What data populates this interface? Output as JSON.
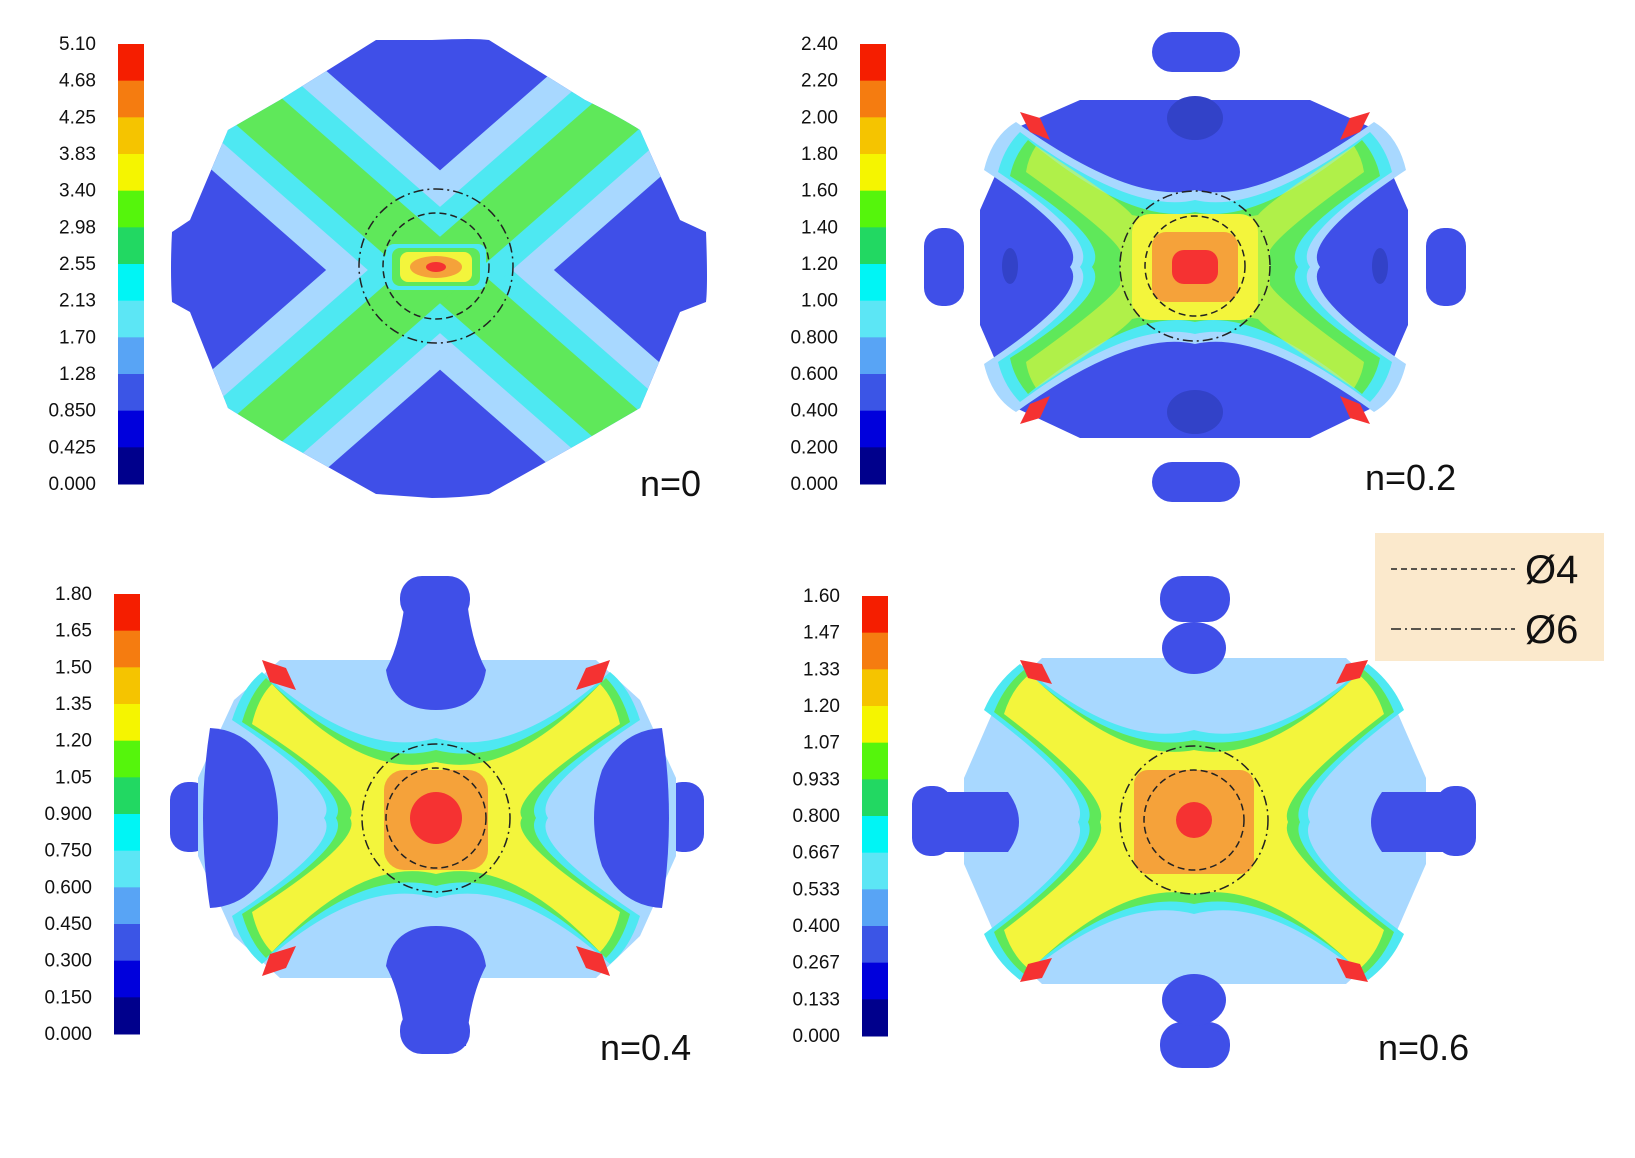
{
  "colorbar_colors": [
    "#000070",
    "#00008c",
    "#0000dc",
    "#3b55e6",
    "#58a4f5",
    "#5ce6f5",
    "#00f5f5",
    "#22d862",
    "#55f50c",
    "#f5f500",
    "#f5c400",
    "#f57c10",
    "#f51e00"
  ],
  "shape_colors": {
    "base": "#3f4fe8",
    "light": "#a8d8ff",
    "cyan": "#4ee8f2",
    "green": "#5fe85a",
    "yellow": "#f3f53c",
    "orange": "#f5a23a",
    "red": "#f53232",
    "dark": "#3242c8"
  },
  "panels": [
    {
      "id": "n0",
      "label": "n=0",
      "ticks": [
        "5.10",
        "4.68",
        "4.25",
        "3.83",
        "3.40",
        "2.98",
        "2.55",
        "2.13",
        "1.70",
        "1.28",
        "0.850",
        "0.425",
        "0.000"
      ],
      "style": "x-band"
    },
    {
      "id": "n02",
      "label": "n=0.2",
      "ticks": [
        "2.40",
        "2.20",
        "2.00",
        "1.80",
        "1.60",
        "1.40",
        "1.20",
        "1.00",
        "0.800",
        "0.600",
        "0.400",
        "0.200",
        "0.000"
      ],
      "style": "star-0.2"
    },
    {
      "id": "n04",
      "label": "n=0.4",
      "ticks": [
        "1.80",
        "1.65",
        "1.50",
        "1.35",
        "1.20",
        "1.05",
        "0.900",
        "0.750",
        "0.600",
        "0.450",
        "0.300",
        "0.150",
        "0.000"
      ],
      "style": "star-0.4"
    },
    {
      "id": "n06",
      "label": "n=0.6",
      "ticks": [
        "1.60",
        "1.47",
        "1.33",
        "1.20",
        "1.07",
        "0.933",
        "0.800",
        "0.667",
        "0.533",
        "0.400",
        "0.267",
        "0.133",
        "0.000"
      ],
      "style": "star-0.6"
    }
  ],
  "legend": {
    "items": [
      {
        "label": "Ø4",
        "line": "dashed"
      },
      {
        "label": "Ø6",
        "line": "dash-dot"
      }
    ]
  }
}
